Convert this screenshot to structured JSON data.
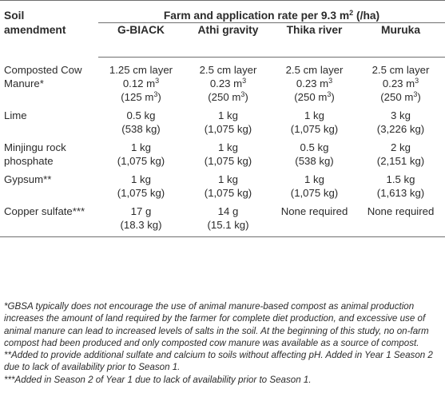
{
  "header": {
    "soil_label_line1": "Soil",
    "soil_label_line2": "amendment",
    "group_title": "Farm and application rate per 9.3 m",
    "group_title_sup": "2",
    "group_title_tail": " (/ha)",
    "farms": [
      "G-BIACK",
      "Athi gravity",
      "Thika river",
      "Muruka"
    ]
  },
  "rows": [
    {
      "label": [
        "Composted Cow",
        "Manure*"
      ],
      "cells": [
        [
          "1.25 cm layer",
          "0.12 m|3",
          "(125 m|3)"
        ],
        [
          "2.5 cm layer",
          "0.23 m|3",
          "(250 m|3)"
        ],
        [
          "2.5 cm layer",
          "0.23 m|3",
          "(250 m|3)"
        ],
        [
          "2.5 cm layer",
          "0.23 m|3",
          "(250 m|3)"
        ]
      ]
    },
    {
      "label": [
        "Lime"
      ],
      "cells": [
        [
          "0.5 kg",
          "(538 kg)"
        ],
        [
          "1 kg",
          "(1,075 kg)"
        ],
        [
          "1 kg",
          "(1,075 kg)"
        ],
        [
          "3 kg",
          "(3,226 kg)"
        ]
      ]
    },
    {
      "label": [
        "Minjingu rock",
        "phosphate"
      ],
      "cells": [
        [
          "1 kg",
          "(1,075 kg)"
        ],
        [
          "1 kg",
          "(1,075 kg)"
        ],
        [
          "0.5 kg",
          "(538 kg)"
        ],
        [
          "2 kg",
          "(2,151 kg)"
        ]
      ]
    },
    {
      "label": [
        "Gypsum**"
      ],
      "cells": [
        [
          "1 kg",
          "(1,075 kg)"
        ],
        [
          "1 kg",
          "(1,075 kg)"
        ],
        [
          "1 kg",
          "(1,075 kg)"
        ],
        [
          "1.5 kg",
          "(1,613 kg)"
        ]
      ]
    },
    {
      "label": [
        "Copper sulfate***"
      ],
      "cells": [
        [
          "17 g",
          "(18.3 kg)"
        ],
        [
          "14 g",
          "(15.1 kg)"
        ],
        [
          "None required"
        ],
        [
          "None required"
        ]
      ]
    }
  ],
  "notes": {
    "note1": "*GBSA typically does not encourage the use of animal manure-based compost as animal production increases the amount of land required by the farmer for complete diet production, and excessive use of animal manure can lead to increased levels of salts in the soil. At the beginning of this study, no on-farm compost had been produced and only composted cow manure was available as a source of compost.",
    "note2": "**Added to provide additional sulfate and calcium to soils without affecting pH. Added in Year 1 Season 2 due to lack of availability prior to Season 1.",
    "note3": "***Added in Season 2 of Year 1 due to lack of availability prior to Season 1."
  }
}
